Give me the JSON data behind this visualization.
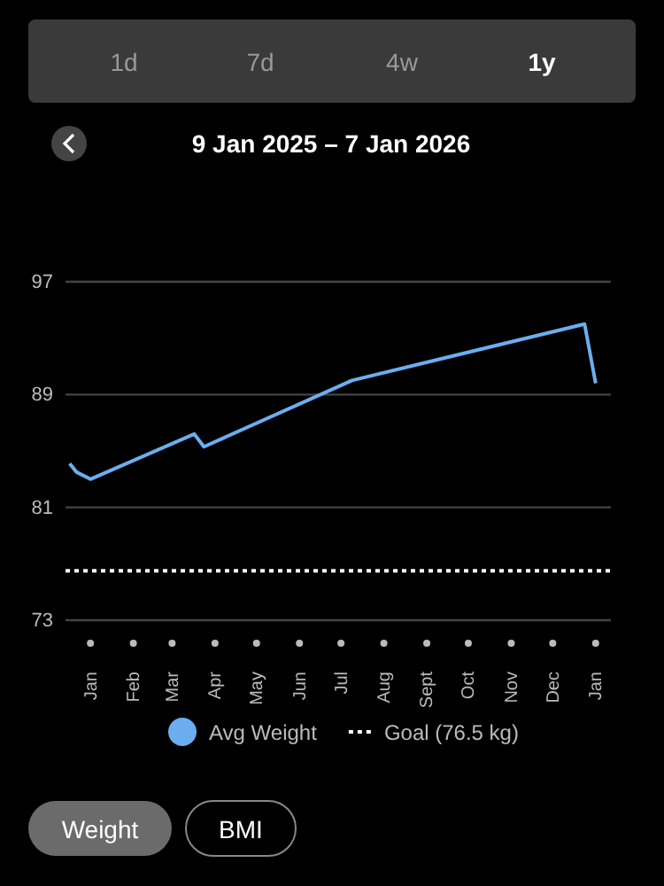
{
  "chart_data": {
    "type": "line",
    "title": "9 Jan 2025 – 7 Jan 2026",
    "annotations": [
      "1d",
      "7d",
      "4w",
      "1y",
      "Weight",
      "BMI"
    ],
    "x": [
      "2024-12-17",
      "2024-12-22",
      "2025-01-01",
      "2025-03-17",
      "2025-03-24",
      "2025-07-09",
      "2025-12-24",
      "2026-01-01"
    ],
    "series": [
      {
        "name": "Avg Weight",
        "color": "#6aaef0",
        "values": [
          84.1,
          83.5,
          83.0,
          86.2,
          85.3,
          90.0,
          94.0,
          89.8
        ]
      }
    ],
    "xlim": [
      "2024-12-14",
      "2026-01-12"
    ],
    "xticks": [
      {
        "value": "2025-01-01",
        "label": "Jan"
      },
      {
        "value": "2025-02-01",
        "label": "Feb"
      },
      {
        "value": "2025-03-01",
        "label": "Mar"
      },
      {
        "value": "2025-04-01",
        "label": "Apr"
      },
      {
        "value": "2025-05-01",
        "label": "May"
      },
      {
        "value": "2025-06-01",
        "label": "Jun"
      },
      {
        "value": "2025-07-01",
        "label": "Jul"
      },
      {
        "value": "2025-08-01",
        "label": "Aug"
      },
      {
        "value": "2025-09-01",
        "label": "Sept"
      },
      {
        "value": "2025-10-01",
        "label": "Oct"
      },
      {
        "value": "2025-11-01",
        "label": "Nov"
      },
      {
        "value": "2025-12-01",
        "label": "Dec"
      },
      {
        "value": "2026-01-01",
        "label": "Jan"
      }
    ],
    "ylim": [
      73,
      97
    ],
    "yticks": [
      73,
      81,
      89,
      97
    ],
    "ref_lines": [
      {
        "axis": "y",
        "value": 76.5,
        "label": "Goal (76.5 kg)",
        "color": "#ffffff",
        "line_style": "dotted"
      }
    ],
    "grid": "y",
    "legend": "bottom",
    "marker": "none",
    "line_style": "solid"
  }
}
